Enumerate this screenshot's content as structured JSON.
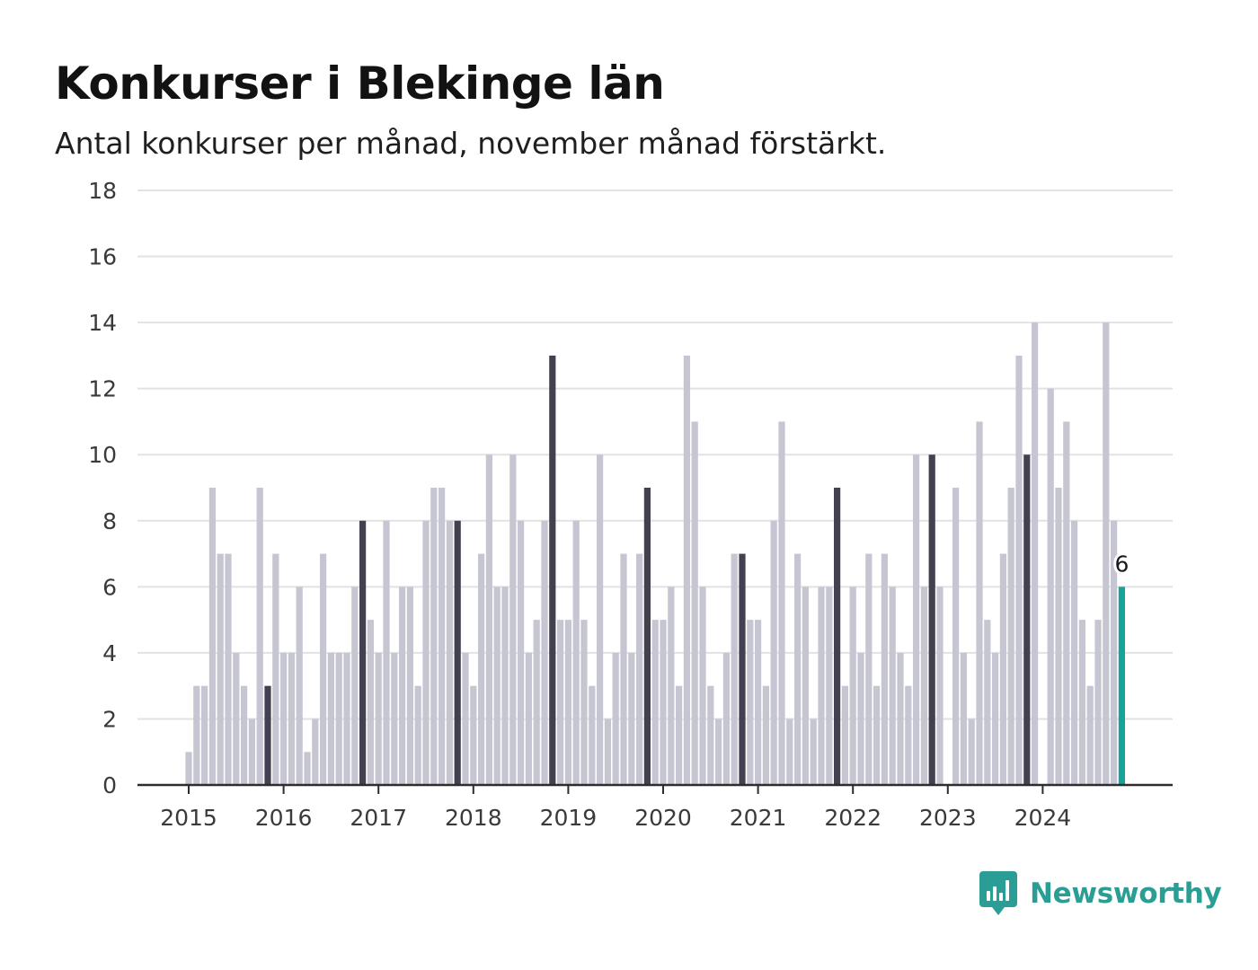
{
  "header": {
    "title": "Konkurser i Blekinge län",
    "subtitle": "Antal konkurser per månad, november månad förstärkt."
  },
  "branding": {
    "name": "Newsworthy",
    "icon": "bar-chart-speech-bubble-icon",
    "color": "#2a9d95"
  },
  "chart_data": {
    "type": "bar",
    "title": "Konkurser i Blekinge län",
    "subtitle": "Antal konkurser per månad, november månad förstärkt.",
    "xlabel": "",
    "ylabel": "",
    "ylim": [
      0,
      18
    ],
    "yticks": [
      0,
      2,
      4,
      6,
      8,
      10,
      12,
      14,
      16,
      18
    ],
    "grid": true,
    "legend": "none",
    "start_month": "2015-01",
    "end_month": "2024-11",
    "x_tick_labels": [
      "2015",
      "2016",
      "2017",
      "2018",
      "2019",
      "2020",
      "2021",
      "2022",
      "2023",
      "2024"
    ],
    "series": [
      {
        "values": [
          1,
          3,
          3,
          9,
          7,
          7,
          4,
          3,
          2,
          9,
          3,
          7,
          4,
          4,
          6,
          1,
          2,
          7,
          4,
          4,
          4,
          6,
          8,
          5,
          4,
          8,
          4,
          6,
          6,
          3,
          8,
          9,
          9,
          8,
          8,
          4,
          3,
          7,
          10,
          6,
          6,
          10,
          8,
          4,
          5,
          8,
          13,
          5,
          5,
          8,
          5,
          3,
          10,
          2,
          4,
          7,
          4,
          7,
          9,
          5,
          5,
          6,
          3,
          13,
          11,
          6,
          3,
          2,
          4,
          7,
          7,
          5,
          5,
          3,
          8,
          11,
          2,
          7,
          6,
          2,
          6,
          6,
          9,
          3,
          6,
          4,
          7,
          3,
          7,
          6,
          4,
          3,
          10,
          6,
          10,
          6,
          0,
          9,
          4,
          2,
          11,
          5,
          4,
          7,
          9,
          13,
          10,
          14,
          0,
          12,
          9,
          11,
          8,
          5,
          3,
          5,
          14,
          8,
          6
        ]
      }
    ],
    "highlighted_month": "november",
    "last_value_label": "6",
    "colors": {
      "bar": "#c6c5d2",
      "november": "#43414f",
      "latest": "#16a497",
      "grid": "#e2e2e5",
      "axis": "#2d2d2d"
    }
  }
}
